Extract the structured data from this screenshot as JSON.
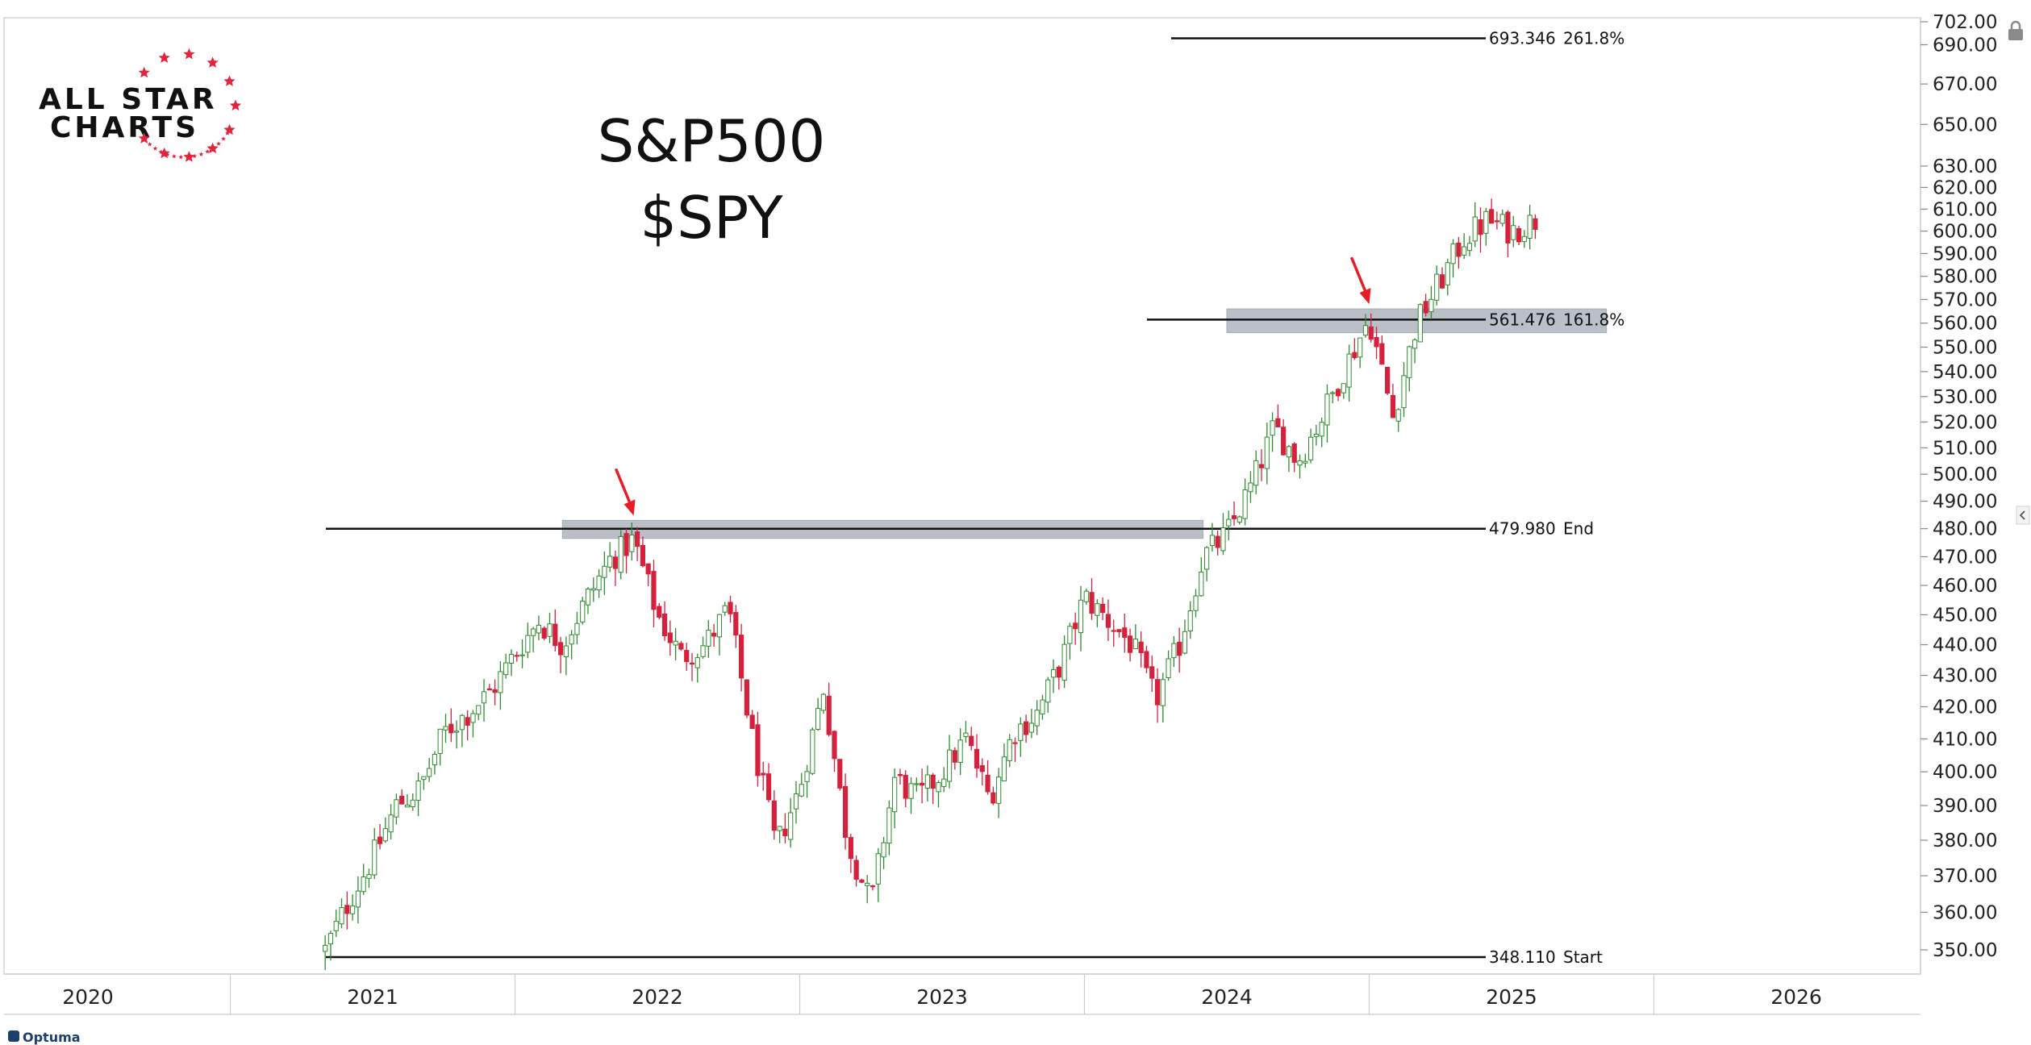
{
  "logo": {
    "line1": "ALL STAR",
    "line2": "CHARTS"
  },
  "footer": {
    "brand": "Optuma"
  },
  "chart_data": {
    "type": "candlestick",
    "title": "S&P500",
    "subtitle": "$SPY",
    "y_scale": "log",
    "ylim": [
      345,
      703
    ],
    "y_ticks": [
      "350.00",
      "360.00",
      "370.00",
      "380.00",
      "390.00",
      "400.00",
      "410.00",
      "420.00",
      "430.00",
      "440.00",
      "450.00",
      "460.00",
      "470.00",
      "480.00",
      "490.00",
      "500.00",
      "510.00",
      "520.00",
      "530.00",
      "540.00",
      "550.00",
      "560.00",
      "570.00",
      "580.00",
      "590.00",
      "600.00",
      "610.00",
      "620.00",
      "630.00",
      "650.00",
      "670.00",
      "690.00",
      "702.00"
    ],
    "x_ticks": [
      "2020",
      "2021",
      "2022",
      "2023",
      "2024",
      "2025",
      "2026"
    ],
    "x_range_years": [
      2019.9,
      2026.6
    ],
    "grid": false,
    "fib_levels": [
      {
        "value": 693.346,
        "label": "693.346",
        "ratio": "261.8%"
      },
      {
        "value": 561.476,
        "label": "561.476",
        "ratio": "161.8%"
      },
      {
        "value": 479.98,
        "label": "479.980",
        "ratio": "End"
      },
      {
        "value": 348.11,
        "label": "348.110",
        "ratio": "Start"
      }
    ],
    "resistance_zones": [
      {
        "low": 476.5,
        "high": 483.0,
        "from": "2021-09",
        "to": "2023-12"
      },
      {
        "low": 556.0,
        "high": 566.0,
        "from": "2024-01",
        "to": "2025-05"
      }
    ],
    "annotations": [
      {
        "type": "arrow",
        "date": "2021-12",
        "value": 483
      },
      {
        "type": "arrow",
        "date": "2024-07",
        "value": 566
      }
    ],
    "weekly_close_path": [
      [
        "2020-11",
        350
      ],
      [
        "2020-12",
        363
      ],
      [
        "2021-01",
        375
      ],
      [
        "2021-02",
        390
      ],
      [
        "2021-03",
        395
      ],
      [
        "2021-04",
        412
      ],
      [
        "2021-05",
        418
      ],
      [
        "2021-06",
        425
      ],
      [
        "2021-07",
        437
      ],
      [
        "2021-08",
        448
      ],
      [
        "2021-09",
        440
      ],
      [
        "2021-10",
        455
      ],
      [
        "2021-11",
        469
      ],
      [
        "2021-12",
        476
      ],
      [
        "2022-01",
        450
      ],
      [
        "2022-02",
        436
      ],
      [
        "2022-03",
        440
      ],
      [
        "2022-04",
        452
      ],
      [
        "2022-05",
        410
      ],
      [
        "2022-06",
        378
      ],
      [
        "2022-07",
        395
      ],
      [
        "2022-08",
        426
      ],
      [
        "2022-09",
        380
      ],
      [
        "2022-10",
        362
      ],
      [
        "2022-11",
        398
      ],
      [
        "2022-12",
        392
      ],
      [
        "2023-01",
        400
      ],
      [
        "2023-02",
        410
      ],
      [
        "2023-03",
        392
      ],
      [
        "2023-04",
        412
      ],
      [
        "2023-05",
        418
      ],
      [
        "2023-06",
        434
      ],
      [
        "2023-07",
        456
      ],
      [
        "2023-08",
        448
      ],
      [
        "2023-09",
        440
      ],
      [
        "2023-10",
        422
      ],
      [
        "2023-11",
        440
      ],
      [
        "2023-12",
        470
      ],
      [
        "2024-01",
        478
      ],
      [
        "2024-02",
        495
      ],
      [
        "2024-03",
        518
      ],
      [
        "2024-04",
        505
      ],
      [
        "2024-05",
        522
      ],
      [
        "2024-06",
        542
      ],
      [
        "2024-07",
        562
      ],
      [
        "2024-08",
        522
      ],
      [
        "2024-09",
        560
      ],
      [
        "2024-10",
        578
      ],
      [
        "2024-11",
        597
      ],
      [
        "2024-12",
        605
      ],
      [
        "2025-01",
        600
      ],
      [
        "2025-02",
        605
      ]
    ]
  }
}
